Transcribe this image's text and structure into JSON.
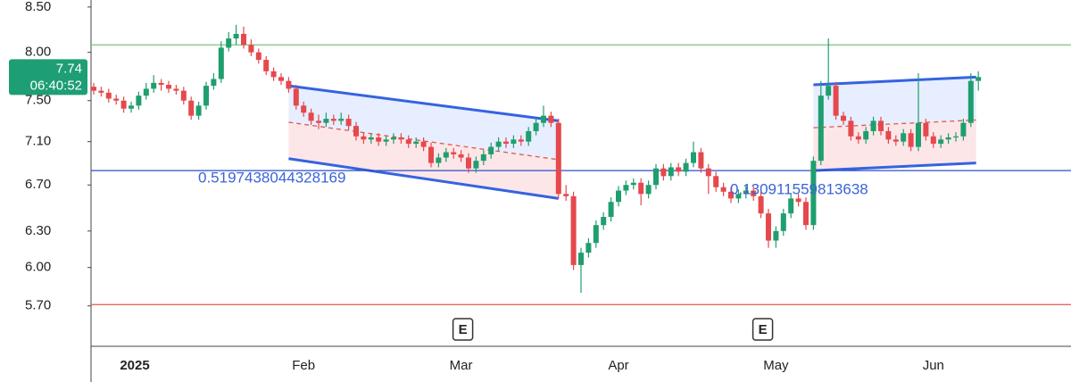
{
  "chart_data": {
    "type": "candlestick",
    "log_scale": true,
    "ylim": [
      5.4,
      8.58
    ],
    "yticks": [
      {
        "value": 8.5,
        "label": "8.50"
      },
      {
        "value": 8.0,
        "label": "8.00"
      },
      {
        "value": 7.5,
        "label": "7.50"
      },
      {
        "value": 7.1,
        "label": "7.10"
      },
      {
        "value": 6.7,
        "label": "6.70"
      },
      {
        "value": 6.3,
        "label": "6.30"
      },
      {
        "value": 6.0,
        "label": "6.00"
      },
      {
        "value": 5.7,
        "label": "5.70"
      }
    ],
    "up_color": "#1f9e6e",
    "down_color": "#e5484d",
    "categories": [
      null,
      null,
      null,
      null,
      null,
      "2025",
      null,
      null,
      null,
      null,
      null,
      null,
      null,
      null,
      null,
      null,
      null,
      null,
      null,
      null,
      null,
      null,
      null,
      null,
      null,
      null,
      null,
      null,
      "Feb",
      null,
      null,
      null,
      null,
      null,
      null,
      null,
      null,
      null,
      null,
      null,
      null,
      null,
      null,
      null,
      null,
      null,
      null,
      null,
      null,
      "Mar",
      null,
      null,
      null,
      null,
      null,
      null,
      null,
      null,
      null,
      null,
      null,
      null,
      null,
      null,
      null,
      null,
      null,
      null,
      null,
      null,
      "Apr",
      null,
      null,
      null,
      null,
      null,
      null,
      null,
      null,
      null,
      null,
      null,
      null,
      null,
      null,
      null,
      null,
      null,
      null,
      null,
      null,
      "May",
      null,
      null,
      null,
      null,
      null,
      null,
      null,
      null,
      null,
      null,
      null,
      null,
      null,
      null,
      null,
      null,
      null,
      null,
      null,
      null,
      "Jun",
      null,
      null,
      null,
      null,
      null,
      null
    ],
    "ohlc": [
      [
        7.64,
        7.68,
        7.56,
        7.6
      ],
      [
        7.6,
        7.64,
        7.54,
        7.58
      ],
      [
        7.58,
        7.62,
        7.48,
        7.52
      ],
      [
        7.52,
        7.56,
        7.46,
        7.5
      ],
      [
        7.5,
        7.54,
        7.38,
        7.42
      ],
      [
        7.42,
        7.49,
        7.38,
        7.45
      ],
      [
        7.45,
        7.59,
        7.41,
        7.55
      ],
      [
        7.55,
        7.68,
        7.51,
        7.62
      ],
      [
        7.62,
        7.76,
        7.58,
        7.68
      ],
      [
        7.68,
        7.72,
        7.6,
        7.66
      ],
      [
        7.66,
        7.7,
        7.58,
        7.62
      ],
      [
        7.62,
        7.66,
        7.56,
        7.6
      ],
      [
        7.6,
        7.64,
        7.46,
        7.5
      ],
      [
        7.5,
        7.54,
        7.31,
        7.35
      ],
      [
        7.35,
        7.49,
        7.31,
        7.45
      ],
      [
        7.45,
        7.69,
        7.41,
        7.65
      ],
      [
        7.65,
        7.78,
        7.61,
        7.72
      ],
      [
        7.72,
        8.12,
        7.68,
        8.05
      ],
      [
        8.05,
        8.22,
        8.01,
        8.15
      ],
      [
        8.15,
        8.3,
        8.08,
        8.2
      ],
      [
        8.2,
        8.28,
        8.04,
        8.08
      ],
      [
        8.08,
        8.14,
        7.96,
        8.0
      ],
      [
        8.0,
        8.04,
        7.88,
        7.92
      ],
      [
        7.92,
        7.96,
        7.76,
        7.8
      ],
      [
        7.8,
        7.84,
        7.7,
        7.74
      ],
      [
        7.74,
        7.78,
        7.66,
        7.7
      ],
      [
        7.7,
        7.74,
        7.58,
        7.62
      ],
      [
        7.62,
        7.66,
        7.41,
        7.45
      ],
      [
        7.45,
        7.49,
        7.34,
        7.38
      ],
      [
        7.38,
        7.42,
        7.26,
        7.3
      ],
      [
        7.3,
        7.36,
        7.22,
        7.28
      ],
      [
        7.28,
        7.38,
        7.24,
        7.32
      ],
      [
        7.32,
        7.36,
        7.26,
        7.3
      ],
      [
        7.3,
        7.38,
        7.26,
        7.32
      ],
      [
        7.32,
        7.36,
        7.21,
        7.25
      ],
      [
        7.25,
        7.29,
        7.11,
        7.15
      ],
      [
        7.15,
        7.19,
        7.08,
        7.12
      ],
      [
        7.12,
        7.18,
        7.08,
        7.14
      ],
      [
        7.14,
        7.18,
        7.06,
        7.1
      ],
      [
        7.1,
        7.16,
        7.06,
        7.12
      ],
      [
        7.12,
        7.18,
        7.08,
        7.14
      ],
      [
        7.14,
        7.18,
        7.08,
        7.12
      ],
      [
        7.12,
        7.16,
        7.04,
        7.08
      ],
      [
        7.08,
        7.14,
        7.04,
        7.1
      ],
      [
        7.1,
        7.14,
        7.01,
        7.05
      ],
      [
        7.05,
        7.09,
        6.86,
        6.9
      ],
      [
        6.9,
        6.99,
        6.86,
        6.95
      ],
      [
        6.95,
        7.04,
        6.91,
        7.0
      ],
      [
        7.0,
        7.04,
        6.94,
        6.98
      ],
      [
        6.98,
        7.02,
        6.91,
        6.95
      ],
      [
        6.95,
        6.99,
        6.81,
        6.85
      ],
      [
        6.85,
        6.96,
        6.81,
        6.92
      ],
      [
        6.92,
        7.02,
        6.88,
        6.98
      ],
      [
        6.98,
        7.09,
        6.94,
        7.05
      ],
      [
        7.05,
        7.14,
        7.01,
        7.1
      ],
      [
        7.1,
        7.14,
        7.04,
        7.08
      ],
      [
        7.08,
        7.16,
        7.04,
        7.12
      ],
      [
        7.12,
        7.16,
        7.06,
        7.1
      ],
      [
        7.1,
        7.24,
        7.06,
        7.2
      ],
      [
        7.2,
        7.32,
        7.16,
        7.28
      ],
      [
        7.28,
        7.45,
        7.24,
        7.35
      ],
      [
        7.35,
        7.39,
        7.24,
        7.28
      ],
      [
        7.28,
        7.32,
        6.58,
        6.62
      ],
      [
        6.62,
        6.7,
        6.56,
        6.6
      ],
      [
        6.6,
        6.64,
        5.98,
        6.02
      ],
      [
        6.02,
        6.16,
        5.8,
        6.12
      ],
      [
        6.12,
        6.24,
        6.08,
        6.2
      ],
      [
        6.2,
        6.39,
        6.16,
        6.35
      ],
      [
        6.35,
        6.46,
        6.31,
        6.42
      ],
      [
        6.42,
        6.59,
        6.38,
        6.55
      ],
      [
        6.55,
        6.69,
        6.51,
        6.65
      ],
      [
        6.65,
        6.74,
        6.61,
        6.7
      ],
      [
        6.7,
        6.76,
        6.66,
        6.72
      ],
      [
        6.72,
        6.76,
        6.52,
        6.62
      ],
      [
        6.62,
        6.74,
        6.58,
        6.7
      ],
      [
        6.7,
        6.89,
        6.66,
        6.85
      ],
      [
        6.85,
        6.89,
        6.74,
        6.78
      ],
      [
        6.78,
        6.9,
        6.74,
        6.86
      ],
      [
        6.86,
        6.9,
        6.78,
        6.82
      ],
      [
        6.82,
        6.94,
        6.78,
        6.9
      ],
      [
        6.9,
        7.1,
        6.86,
        7.0
      ],
      [
        7.0,
        7.04,
        6.81,
        6.85
      ],
      [
        6.85,
        6.89,
        6.62,
        6.78
      ],
      [
        6.78,
        6.82,
        6.64,
        6.68
      ],
      [
        6.68,
        6.72,
        6.6,
        6.64
      ],
      [
        6.64,
        6.68,
        6.54,
        6.58
      ],
      [
        6.58,
        6.66,
        6.54,
        6.62
      ],
      [
        6.62,
        6.69,
        6.58,
        6.65
      ],
      [
        6.65,
        6.69,
        6.56,
        6.6
      ],
      [
        6.6,
        6.64,
        6.41,
        6.45
      ],
      [
        6.45,
        6.49,
        6.16,
        6.22
      ],
      [
        6.22,
        6.34,
        6.16,
        6.3
      ],
      [
        6.3,
        6.49,
        6.26,
        6.45
      ],
      [
        6.45,
        6.62,
        6.41,
        6.58
      ],
      [
        6.58,
        6.62,
        6.51,
        6.55
      ],
      [
        6.55,
        6.59,
        6.31,
        6.35
      ],
      [
        6.35,
        6.96,
        6.31,
        6.92
      ],
      [
        6.92,
        7.7,
        6.88,
        7.55
      ],
      [
        7.55,
        8.15,
        7.51,
        7.65
      ],
      [
        7.65,
        7.69,
        7.31,
        7.35
      ],
      [
        7.35,
        7.39,
        7.26,
        7.3
      ],
      [
        7.3,
        7.34,
        7.11,
        7.15
      ],
      [
        7.15,
        7.19,
        7.08,
        7.12
      ],
      [
        7.12,
        7.24,
        7.08,
        7.2
      ],
      [
        7.2,
        7.34,
        7.16,
        7.3
      ],
      [
        7.3,
        7.34,
        7.16,
        7.2
      ],
      [
        7.2,
        7.24,
        7.08,
        7.12
      ],
      [
        7.12,
        7.16,
        7.06,
        7.1
      ],
      [
        7.1,
        7.22,
        7.06,
        7.18
      ],
      [
        7.18,
        7.22,
        7.01,
        7.05
      ],
      [
        7.05,
        7.78,
        7.01,
        7.28
      ],
      [
        7.28,
        7.32,
        7.11,
        7.15
      ],
      [
        7.15,
        7.19,
        7.04,
        7.08
      ],
      [
        7.08,
        7.16,
        7.04,
        7.12
      ],
      [
        7.12,
        7.18,
        7.08,
        7.14
      ],
      [
        7.14,
        7.19,
        7.1,
        7.15
      ],
      [
        7.15,
        7.32,
        7.11,
        7.28
      ],
      [
        7.28,
        7.78,
        7.24,
        7.7
      ],
      [
        7.7,
        7.8,
        7.6,
        7.74
      ]
    ],
    "hlines": [
      {
        "value": 8.08,
        "color": "#86c98a"
      },
      {
        "value": 6.83,
        "color": "#2d4fc8"
      },
      {
        "value": 5.71,
        "color": "#e0584f"
      }
    ],
    "channels": [
      {
        "label": "0.5197438044328169",
        "upper": [
          7.65,
          7.3
        ],
        "lower": [
          6.94,
          6.58
        ]
      },
      {
        "label": "0.130911559813638",
        "upper": [
          7.66,
          7.74
        ],
        "lower": [
          6.83,
          6.9
        ]
      }
    ],
    "events": [
      {
        "label": "E"
      },
      {
        "label": "E"
      }
    ],
    "current": {
      "price": 7.74,
      "time": "06:40:52",
      "color": "#1e9e74"
    }
  }
}
